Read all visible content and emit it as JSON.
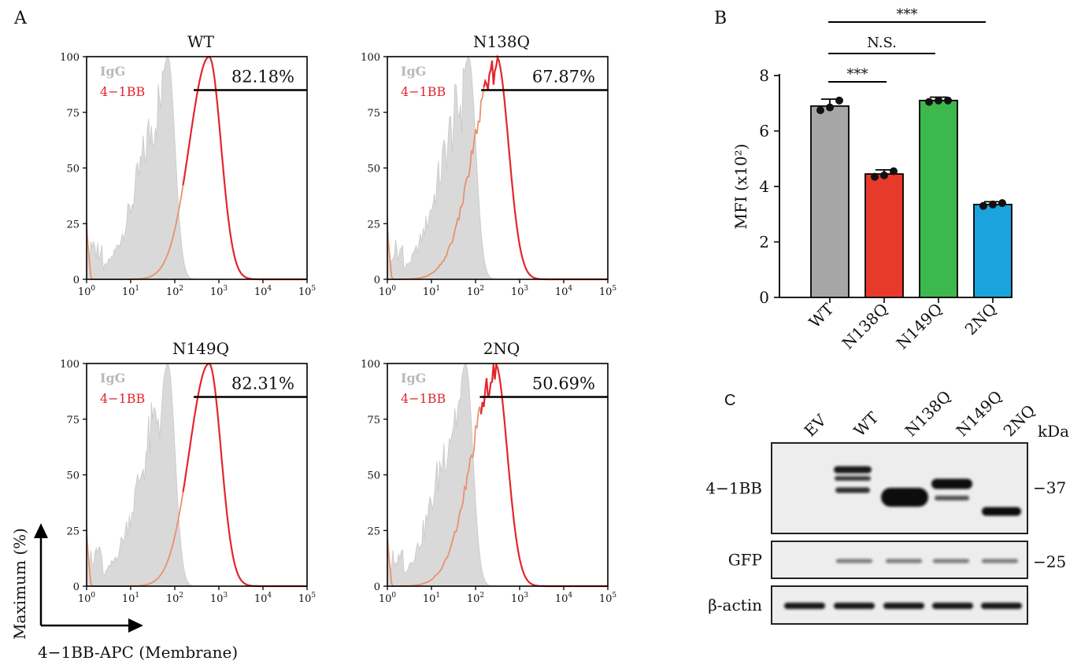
{
  "panel_labels": {
    "a": "A",
    "b": "B",
    "c": "C"
  },
  "colors": {
    "igg_fill": "#d9d9d9",
    "igg_stroke": "#c8c8c8",
    "bb_line": "#e3262d",
    "bb_overlap": "#e8916d",
    "bar_wt": "#a6a6a6",
    "bar_n138q": "#e83a2a",
    "bar_n149q": "#3db84c",
    "bar_2nq": "#1aa3dc"
  },
  "panel_a": {
    "legend": {
      "igg": "IgG",
      "bb": "4−1BB"
    },
    "y_axis_label": "Maximum (%)",
    "x_axis_label": "4−1BB-APC (Membrane)",
    "y_ticks": [
      "0",
      "25",
      "50",
      "75",
      "100"
    ],
    "x_ticks": [
      {
        "base": "10",
        "exp": "0"
      },
      {
        "base": "10",
        "exp": "1"
      },
      {
        "base": "10",
        "exp": "2"
      },
      {
        "base": "10",
        "exp": "3"
      },
      {
        "base": "10",
        "exp": "4"
      },
      {
        "base": "10",
        "exp": "5"
      }
    ]
  },
  "panel_b": {
    "ylabel": "MFI (x10²)",
    "significance": [
      {
        "label": "***",
        "from": "WT",
        "to": "N138Q"
      },
      {
        "label": "N.S.",
        "from": "WT",
        "to": "N149Q"
      },
      {
        "label": "***",
        "from": "WT",
        "to": "2NQ"
      }
    ]
  },
  "panel_c": {
    "lanes": [
      "EV",
      "WT",
      "N138Q",
      "N149Q",
      "2NQ"
    ],
    "unit": "kDa",
    "rows": [
      {
        "label": "4−1BB",
        "marker": "−37"
      },
      {
        "label": "GFP",
        "marker": "−25"
      },
      {
        "label": "β-actin",
        "marker": ""
      }
    ]
  },
  "chart_data": [
    {
      "type": "area",
      "panel": "A",
      "title": "WT",
      "xscale": "log",
      "xlim": [
        1,
        100000
      ],
      "ylim": [
        0,
        100
      ],
      "gate_percent": "82.18%",
      "series": [
        {
          "name": "IgG",
          "peak_x": 70,
          "peak_y": 100
        },
        {
          "name": "4−1BB",
          "peak_x": 600,
          "peak_y": 100
        }
      ]
    },
    {
      "type": "area",
      "panel": "A",
      "title": "N138Q",
      "xscale": "log",
      "xlim": [
        1,
        100000
      ],
      "ylim": [
        0,
        100
      ],
      "gate_percent": "67.87%",
      "series": [
        {
          "name": "IgG",
          "peak_x": 70,
          "peak_y": 100
        },
        {
          "name": "4−1BB",
          "peak_x": 300,
          "peak_y": 100
        }
      ]
    },
    {
      "type": "area",
      "panel": "A",
      "title": "N149Q",
      "xscale": "log",
      "xlim": [
        1,
        100000
      ],
      "ylim": [
        0,
        100
      ],
      "gate_percent": "82.31%",
      "series": [
        {
          "name": "IgG",
          "peak_x": 70,
          "peak_y": 100
        },
        {
          "name": "4−1BB",
          "peak_x": 600,
          "peak_y": 100
        }
      ]
    },
    {
      "type": "area",
      "panel": "A",
      "title": "2NQ",
      "xscale": "log",
      "xlim": [
        1,
        100000
      ],
      "ylim": [
        0,
        100
      ],
      "gate_percent": "50.69%",
      "series": [
        {
          "name": "IgG",
          "peak_x": 60,
          "peak_y": 100
        },
        {
          "name": "4−1BB",
          "peak_x": 280,
          "peak_y": 100
        }
      ]
    },
    {
      "type": "bar",
      "panel": "B",
      "title": "",
      "categories": [
        "WT",
        "N138Q",
        "N149Q",
        "2NQ"
      ],
      "values": [
        6.9,
        4.45,
        7.1,
        3.35
      ],
      "errors": [
        0.25,
        0.15,
        0.12,
        0.1
      ],
      "points": [
        [
          6.75,
          6.85,
          7.1
        ],
        [
          4.35,
          4.4,
          4.55
        ],
        [
          7.05,
          7.1,
          7.1
        ],
        [
          3.3,
          3.35,
          3.4
        ]
      ],
      "xlabel": "",
      "ylabel": "MFI (x10²)",
      "ylim": [
        0,
        8
      ],
      "yticks": [
        0,
        2,
        4,
        6,
        8
      ]
    }
  ]
}
